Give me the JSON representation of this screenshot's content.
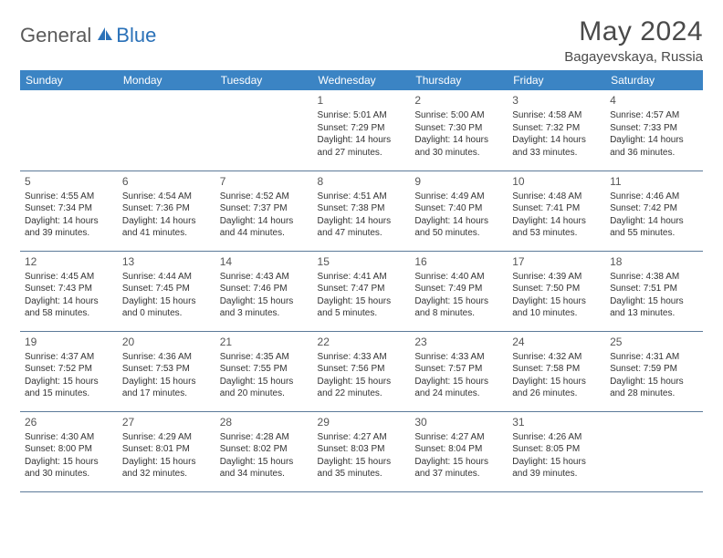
{
  "brand": {
    "general": "General",
    "blue": "Blue"
  },
  "title": "May 2024",
  "location": "Bagayevskaya, Russia",
  "colors": {
    "header_bg": "#3b84c4",
    "header_text": "#ffffff",
    "border": "#5c7a99",
    "logo_grey": "#5a5a5a",
    "logo_blue": "#2a71b8",
    "text": "#333333",
    "title_color": "#4a4a4a"
  },
  "weekdays": [
    "Sunday",
    "Monday",
    "Tuesday",
    "Wednesday",
    "Thursday",
    "Friday",
    "Saturday"
  ],
  "weeks": [
    [
      null,
      null,
      null,
      {
        "n": "1",
        "sr": "5:01 AM",
        "ss": "7:29 PM",
        "dl": "14 hours and 27 minutes."
      },
      {
        "n": "2",
        "sr": "5:00 AM",
        "ss": "7:30 PM",
        "dl": "14 hours and 30 minutes."
      },
      {
        "n": "3",
        "sr": "4:58 AM",
        "ss": "7:32 PM",
        "dl": "14 hours and 33 minutes."
      },
      {
        "n": "4",
        "sr": "4:57 AM",
        "ss": "7:33 PM",
        "dl": "14 hours and 36 minutes."
      }
    ],
    [
      {
        "n": "5",
        "sr": "4:55 AM",
        "ss": "7:34 PM",
        "dl": "14 hours and 39 minutes."
      },
      {
        "n": "6",
        "sr": "4:54 AM",
        "ss": "7:36 PM",
        "dl": "14 hours and 41 minutes."
      },
      {
        "n": "7",
        "sr": "4:52 AM",
        "ss": "7:37 PM",
        "dl": "14 hours and 44 minutes."
      },
      {
        "n": "8",
        "sr": "4:51 AM",
        "ss": "7:38 PM",
        "dl": "14 hours and 47 minutes."
      },
      {
        "n": "9",
        "sr": "4:49 AM",
        "ss": "7:40 PM",
        "dl": "14 hours and 50 minutes."
      },
      {
        "n": "10",
        "sr": "4:48 AM",
        "ss": "7:41 PM",
        "dl": "14 hours and 53 minutes."
      },
      {
        "n": "11",
        "sr": "4:46 AM",
        "ss": "7:42 PM",
        "dl": "14 hours and 55 minutes."
      }
    ],
    [
      {
        "n": "12",
        "sr": "4:45 AM",
        "ss": "7:43 PM",
        "dl": "14 hours and 58 minutes."
      },
      {
        "n": "13",
        "sr": "4:44 AM",
        "ss": "7:45 PM",
        "dl": "15 hours and 0 minutes."
      },
      {
        "n": "14",
        "sr": "4:43 AM",
        "ss": "7:46 PM",
        "dl": "15 hours and 3 minutes."
      },
      {
        "n": "15",
        "sr": "4:41 AM",
        "ss": "7:47 PM",
        "dl": "15 hours and 5 minutes."
      },
      {
        "n": "16",
        "sr": "4:40 AM",
        "ss": "7:49 PM",
        "dl": "15 hours and 8 minutes."
      },
      {
        "n": "17",
        "sr": "4:39 AM",
        "ss": "7:50 PM",
        "dl": "15 hours and 10 minutes."
      },
      {
        "n": "18",
        "sr": "4:38 AM",
        "ss": "7:51 PM",
        "dl": "15 hours and 13 minutes."
      }
    ],
    [
      {
        "n": "19",
        "sr": "4:37 AM",
        "ss": "7:52 PM",
        "dl": "15 hours and 15 minutes."
      },
      {
        "n": "20",
        "sr": "4:36 AM",
        "ss": "7:53 PM",
        "dl": "15 hours and 17 minutes."
      },
      {
        "n": "21",
        "sr": "4:35 AM",
        "ss": "7:55 PM",
        "dl": "15 hours and 20 minutes."
      },
      {
        "n": "22",
        "sr": "4:33 AM",
        "ss": "7:56 PM",
        "dl": "15 hours and 22 minutes."
      },
      {
        "n": "23",
        "sr": "4:33 AM",
        "ss": "7:57 PM",
        "dl": "15 hours and 24 minutes."
      },
      {
        "n": "24",
        "sr": "4:32 AM",
        "ss": "7:58 PM",
        "dl": "15 hours and 26 minutes."
      },
      {
        "n": "25",
        "sr": "4:31 AM",
        "ss": "7:59 PM",
        "dl": "15 hours and 28 minutes."
      }
    ],
    [
      {
        "n": "26",
        "sr": "4:30 AM",
        "ss": "8:00 PM",
        "dl": "15 hours and 30 minutes."
      },
      {
        "n": "27",
        "sr": "4:29 AM",
        "ss": "8:01 PM",
        "dl": "15 hours and 32 minutes."
      },
      {
        "n": "28",
        "sr": "4:28 AM",
        "ss": "8:02 PM",
        "dl": "15 hours and 34 minutes."
      },
      {
        "n": "29",
        "sr": "4:27 AM",
        "ss": "8:03 PM",
        "dl": "15 hours and 35 minutes."
      },
      {
        "n": "30",
        "sr": "4:27 AM",
        "ss": "8:04 PM",
        "dl": "15 hours and 37 minutes."
      },
      {
        "n": "31",
        "sr": "4:26 AM",
        "ss": "8:05 PM",
        "dl": "15 hours and 39 minutes."
      },
      null
    ]
  ],
  "labels": {
    "sunrise": "Sunrise:",
    "sunset": "Sunset:",
    "daylight": "Daylight:"
  }
}
